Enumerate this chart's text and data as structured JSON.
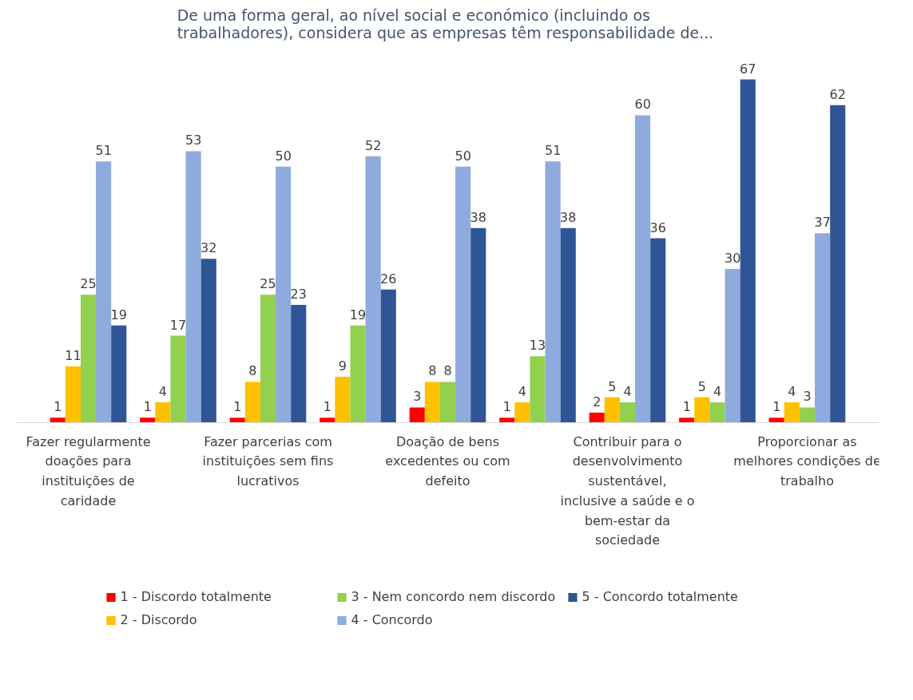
{
  "chart_data": {
    "type": "bar",
    "title": "De uma forma geral, ao nível social e económico (incluindo os trabalhadores),  considera que as empresas têm responsabilidade de...",
    "categories": [
      "Fazer regularmente doações para instituições de caridade",
      null,
      "Fazer parcerias com instituições sem fins lucrativos",
      null,
      "Doação de bens excedentes ou com defeito",
      null,
      "Contribuir para o desenvolvimento sustentável, inclusive a saúde e o bem-estar da sociedade",
      null,
      "Proporcionar as melhores condições de trabalho"
    ],
    "series": [
      {
        "name": "1 - Discordo totalmente",
        "color": "#ff0000",
        "values": [
          1,
          1,
          1,
          1,
          3,
          1,
          2,
          1,
          1
        ]
      },
      {
        "name": "2 - Discordo",
        "color": "#ffc000",
        "values": [
          11,
          4,
          8,
          9,
          8,
          4,
          5,
          5,
          4
        ]
      },
      {
        "name": "3 - Nem concordo nem discordo",
        "color": "#92d050",
        "values": [
          25,
          17,
          25,
          19,
          8,
          13,
          4,
          4,
          3
        ]
      },
      {
        "name": "4 - Concordo",
        "color": "#8faadc",
        "values": [
          51,
          53,
          50,
          52,
          50,
          51,
          60,
          30,
          37
        ]
      },
      {
        "name": "5 - Concordo totalmente",
        "color": "#2f5597",
        "values": [
          19,
          32,
          23,
          26,
          38,
          38,
          36,
          67,
          62
        ]
      }
    ],
    "data_labels": true,
    "grid": false,
    "legend": "bottom"
  }
}
